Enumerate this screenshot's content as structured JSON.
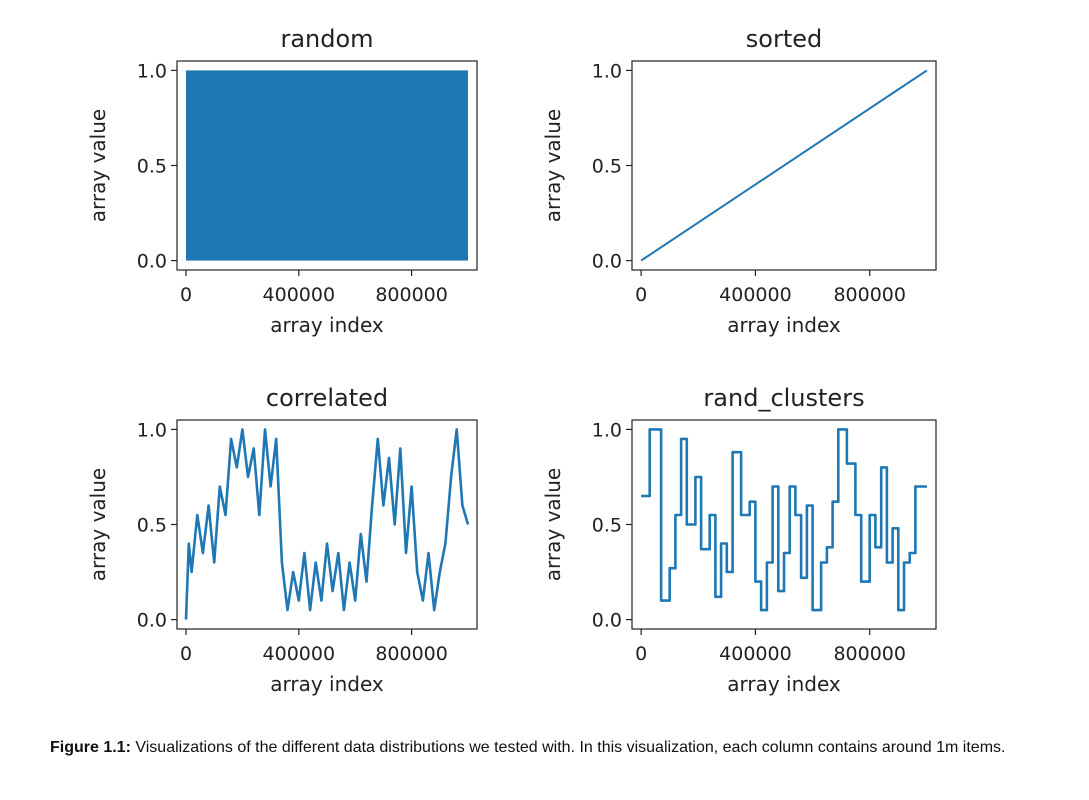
{
  "figure": {
    "caption_label": "Figure 1.1:",
    "caption_text": "Visualizations of the different data distributions we tested with. In this visualization, each column contains around 1m items."
  },
  "chart_data": [
    {
      "type": "line",
      "title": "random",
      "xlabel": "array index",
      "ylabel": "array value",
      "xlim": [
        0,
        1000000
      ],
      "ylim": [
        0.0,
        1.0
      ],
      "xticks": [
        0,
        400000,
        800000
      ],
      "xtick_labels": [
        "0",
        "400000",
        "800000"
      ],
      "yticks": [
        0.0,
        0.5,
        1.0
      ],
      "ytick_labels": [
        "0.0",
        "0.5",
        "1.0"
      ],
      "color": "#1f77b4",
      "fill_band": [
        0.0,
        1.0
      ],
      "series": [
        {
          "x": [
            0,
            1000000
          ],
          "y": [
            0.0,
            1.0
          ]
        }
      ]
    },
    {
      "type": "line",
      "title": "sorted",
      "xlabel": "array index",
      "ylabel": "array value",
      "xlim": [
        0,
        1000000
      ],
      "ylim": [
        0.0,
        1.0
      ],
      "xticks": [
        0,
        400000,
        800000
      ],
      "xtick_labels": [
        "0",
        "400000",
        "800000"
      ],
      "yticks": [
        0.0,
        0.5,
        1.0
      ],
      "ytick_labels": [
        "0.0",
        "0.5",
        "1.0"
      ],
      "color": "#1f77b4",
      "series": [
        {
          "x": [
            0,
            1000000
          ],
          "y": [
            0.0,
            1.0
          ]
        }
      ]
    },
    {
      "type": "line",
      "title": "correlated",
      "xlabel": "array index",
      "ylabel": "array value",
      "xlim": [
        0,
        1000000
      ],
      "ylim": [
        0.0,
        1.0
      ],
      "xticks": [
        0,
        400000,
        800000
      ],
      "xtick_labels": [
        "0",
        "400000",
        "800000"
      ],
      "yticks": [
        0.0,
        0.5,
        1.0
      ],
      "ytick_labels": [
        "0.0",
        "0.5",
        "1.0"
      ],
      "color": "#1f77b4",
      "series": [
        {
          "x": [
            0,
            10000,
            20000,
            40000,
            60000,
            80000,
            100000,
            120000,
            140000,
            160000,
            180000,
            200000,
            220000,
            240000,
            260000,
            280000,
            300000,
            320000,
            340000,
            360000,
            380000,
            400000,
            420000,
            440000,
            460000,
            480000,
            500000,
            520000,
            540000,
            560000,
            580000,
            600000,
            620000,
            640000,
            660000,
            680000,
            700000,
            720000,
            740000,
            760000,
            780000,
            800000,
            820000,
            840000,
            860000,
            880000,
            900000,
            920000,
            940000,
            960000,
            980000,
            1000000
          ],
          "y": [
            0.0,
            0.4,
            0.25,
            0.55,
            0.35,
            0.6,
            0.3,
            0.7,
            0.55,
            0.95,
            0.8,
            1.0,
            0.75,
            0.9,
            0.55,
            1.0,
            0.7,
            0.95,
            0.3,
            0.05,
            0.25,
            0.1,
            0.35,
            0.05,
            0.3,
            0.1,
            0.4,
            0.15,
            0.35,
            0.05,
            0.3,
            0.1,
            0.45,
            0.2,
            0.6,
            0.95,
            0.6,
            0.85,
            0.5,
            0.9,
            0.35,
            0.7,
            0.25,
            0.1,
            0.35,
            0.05,
            0.25,
            0.4,
            0.75,
            1.0,
            0.6,
            0.5
          ]
        }
      ]
    },
    {
      "type": "line",
      "title": "rand_clusters",
      "xlabel": "array index",
      "ylabel": "array value",
      "xlim": [
        0,
        1000000
      ],
      "ylim": [
        0.0,
        1.0
      ],
      "xticks": [
        0,
        400000,
        800000
      ],
      "xtick_labels": [
        "0",
        "400000",
        "800000"
      ],
      "yticks": [
        0.0,
        0.5,
        1.0
      ],
      "ytick_labels": [
        "0.0",
        "0.5",
        "1.0"
      ],
      "color": "#1f77b4",
      "series": [
        {
          "x": [
            0,
            30000,
            30000,
            70000,
            70000,
            100000,
            100000,
            120000,
            120000,
            140000,
            140000,
            160000,
            160000,
            190000,
            190000,
            210000,
            210000,
            240000,
            240000,
            260000,
            260000,
            280000,
            280000,
            300000,
            300000,
            320000,
            320000,
            350000,
            350000,
            380000,
            380000,
            400000,
            400000,
            420000,
            420000,
            440000,
            440000,
            460000,
            460000,
            480000,
            480000,
            500000,
            500000,
            520000,
            520000,
            540000,
            540000,
            560000,
            560000,
            580000,
            580000,
            600000,
            600000,
            630000,
            630000,
            650000,
            650000,
            670000,
            670000,
            690000,
            690000,
            720000,
            720000,
            750000,
            750000,
            770000,
            770000,
            800000,
            800000,
            820000,
            820000,
            840000,
            840000,
            860000,
            860000,
            880000,
            880000,
            900000,
            900000,
            920000,
            920000,
            940000,
            940000,
            960000,
            960000,
            1000000
          ],
          "y": [
            0.65,
            0.65,
            1.0,
            1.0,
            0.1,
            0.1,
            0.27,
            0.27,
            0.55,
            0.55,
            0.95,
            0.95,
            0.5,
            0.5,
            0.75,
            0.75,
            0.37,
            0.37,
            0.55,
            0.55,
            0.12,
            0.12,
            0.4,
            0.4,
            0.25,
            0.25,
            0.88,
            0.88,
            0.55,
            0.55,
            0.62,
            0.62,
            0.2,
            0.2,
            0.05,
            0.05,
            0.3,
            0.3,
            0.7,
            0.7,
            0.15,
            0.15,
            0.35,
            0.35,
            0.7,
            0.7,
            0.55,
            0.55,
            0.22,
            0.22,
            0.6,
            0.6,
            0.05,
            0.05,
            0.3,
            0.3,
            0.38,
            0.38,
            0.62,
            0.62,
            1.0,
            1.0,
            0.82,
            0.82,
            0.55,
            0.55,
            0.2,
            0.2,
            0.55,
            0.55,
            0.38,
            0.38,
            0.8,
            0.8,
            0.3,
            0.3,
            0.48,
            0.48,
            0.05,
            0.05,
            0.3,
            0.3,
            0.35,
            0.35,
            0.7,
            0.7
          ]
        }
      ]
    }
  ]
}
